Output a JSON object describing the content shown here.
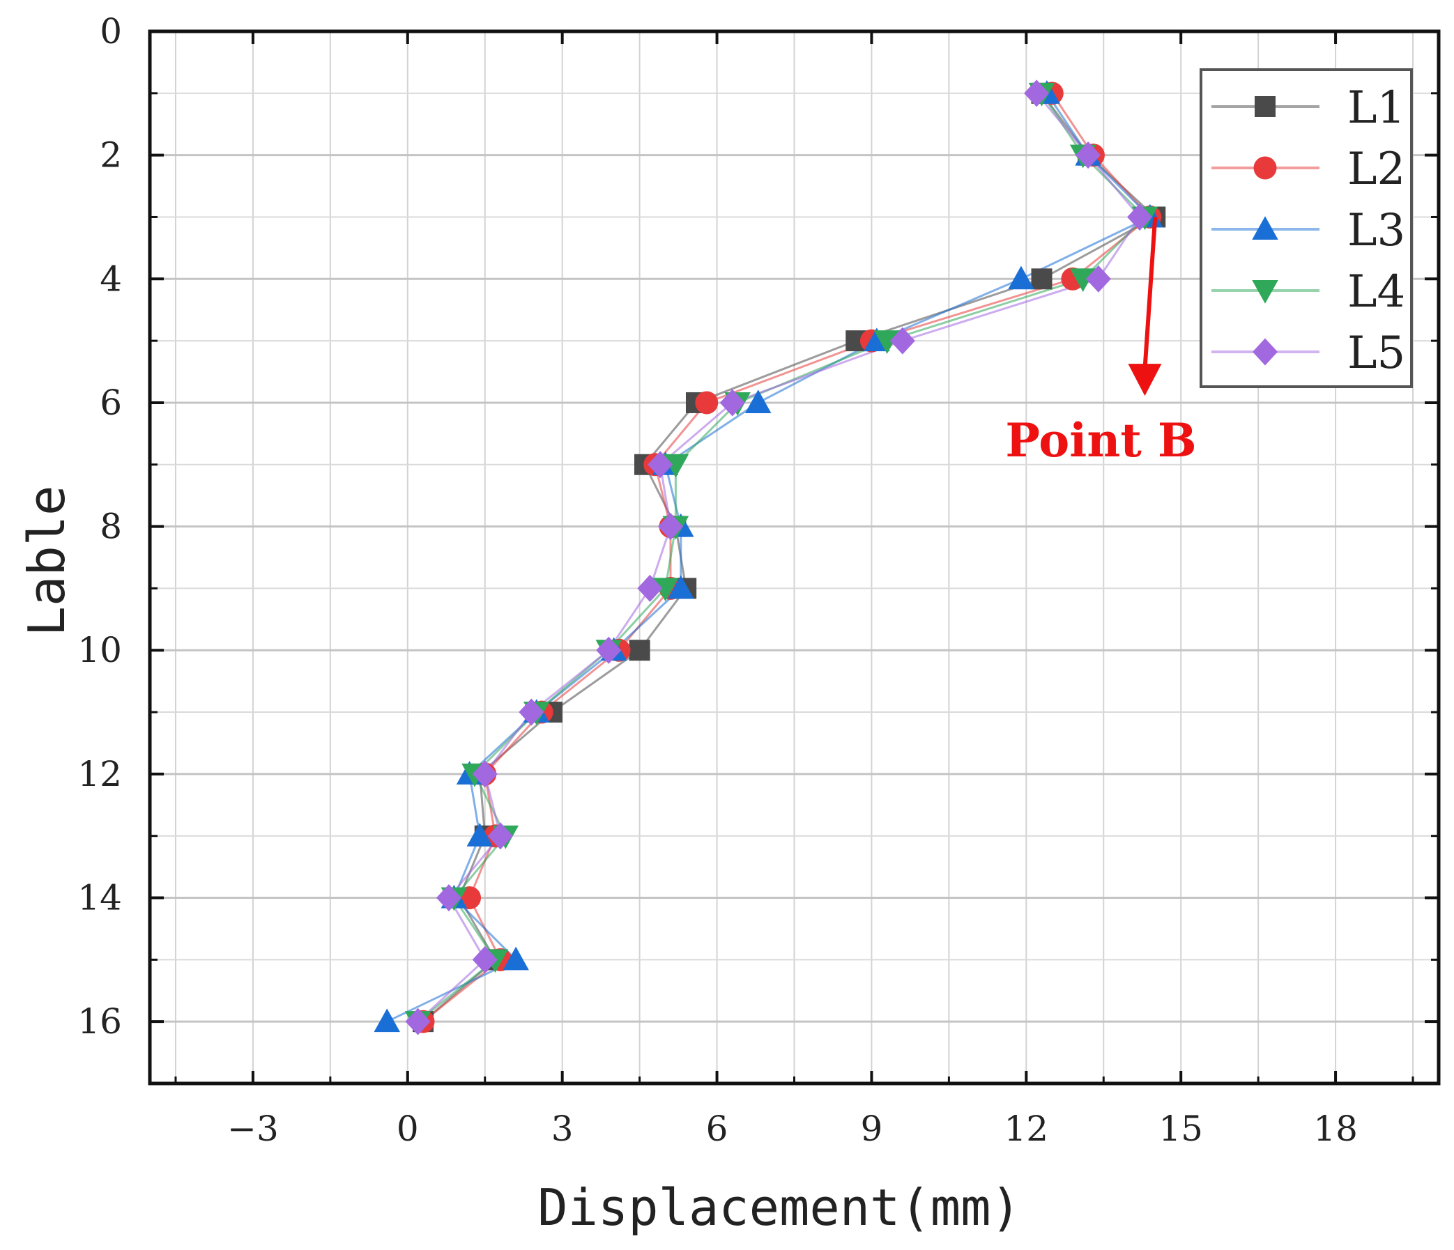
{
  "chart_data": {
    "type": "scatter",
    "title": "",
    "xlabel": "Displacement(mm)",
    "ylabel": "Lable",
    "xlim": [
      -5,
      20
    ],
    "ylim": [
      17,
      0
    ],
    "x_ticks": [
      -3,
      0,
      3,
      6,
      9,
      12,
      15,
      18
    ],
    "x_tick_labels": [
      "−3",
      "0",
      "3",
      "6",
      "9",
      "12",
      "15",
      "18"
    ],
    "y_ticks": [
      0,
      2,
      4,
      6,
      8,
      10,
      12,
      14,
      16
    ],
    "y_tick_labels": [
      "0",
      "2",
      "4",
      "6",
      "8",
      "10",
      "12",
      "14",
      "16"
    ],
    "grid": true,
    "legend_position": "top-right",
    "series": [
      {
        "name": "L1",
        "color": "#4a4a4a",
        "marker": "square",
        "x": [
          12.3,
          13.2,
          14.5,
          12.3,
          8.7,
          5.6,
          4.6,
          5.2,
          5.4,
          4.5,
          2.8,
          1.4,
          1.5,
          1.0,
          1.7,
          0.3
        ],
        "y": [
          1,
          2,
          3,
          4,
          5,
          6,
          7,
          8,
          9,
          10,
          11,
          12,
          13,
          14,
          15,
          16
        ]
      },
      {
        "name": "L2",
        "color": "#e83a3a",
        "marker": "circle",
        "x": [
          12.5,
          13.3,
          14.4,
          12.9,
          9.0,
          5.8,
          4.8,
          5.1,
          5.1,
          4.1,
          2.6,
          1.5,
          1.7,
          1.2,
          1.8,
          0.3
        ],
        "y": [
          1,
          2,
          3,
          4,
          5,
          6,
          7,
          8,
          9,
          10,
          11,
          12,
          13,
          14,
          15,
          16
        ]
      },
      {
        "name": "L3",
        "color": "#1a6fd6",
        "marker": "triangle-up",
        "x": [
          12.4,
          13.2,
          14.4,
          11.9,
          9.1,
          6.8,
          5.0,
          5.3,
          5.3,
          4.0,
          2.5,
          1.2,
          1.4,
          0.9,
          2.1,
          -0.4
        ],
        "y": [
          1,
          2,
          3,
          4,
          5,
          6,
          7,
          8,
          9,
          10,
          11,
          12,
          13,
          14,
          15,
          16
        ]
      },
      {
        "name": "L4",
        "color": "#2fa85a",
        "marker": "triangle-down",
        "x": [
          12.3,
          13.1,
          14.3,
          13.1,
          9.3,
          6.4,
          5.2,
          5.2,
          5.0,
          3.9,
          2.5,
          1.3,
          1.9,
          0.9,
          1.7,
          0.2
        ],
        "y": [
          1,
          2,
          3,
          4,
          5,
          6,
          7,
          8,
          9,
          10,
          11,
          12,
          13,
          14,
          15,
          16
        ]
      },
      {
        "name": "L5",
        "color": "#a268e0",
        "marker": "diamond",
        "x": [
          12.2,
          13.2,
          14.2,
          13.4,
          9.6,
          6.3,
          4.9,
          5.1,
          4.7,
          3.9,
          2.4,
          1.5,
          1.8,
          0.8,
          1.5,
          0.2
        ],
        "y": [
          1,
          2,
          3,
          4,
          5,
          6,
          7,
          8,
          9,
          10,
          11,
          12,
          13,
          14,
          15,
          16
        ]
      }
    ],
    "annotations": [
      {
        "text": "Point B",
        "color": "#ee1111",
        "arrow_from": [
          14.5,
          3
        ],
        "arrow_to": [
          14.3,
          5.8
        ]
      }
    ]
  }
}
